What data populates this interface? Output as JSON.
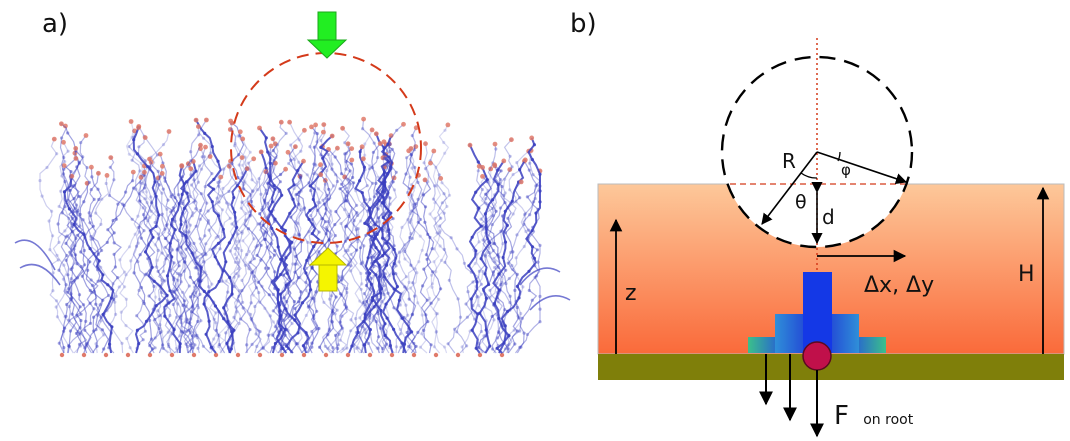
{
  "panel_a": {
    "label": "a)",
    "arrow_colors": {
      "top": "#22ee22",
      "bottom": "#f5f500"
    },
    "brush_color": "#3b3fc0",
    "end_bead_color": "#e07a6a",
    "dashed_circle_color": "#d43a1a"
  },
  "panel_b": {
    "label": "b)",
    "symbols": {
      "R": "R",
      "phi": "φ",
      "theta": "θ",
      "d": "d",
      "z": "z",
      "H": "H",
      "delta": "Δx, Δy",
      "force_main": "F",
      "force_sub": "on root"
    },
    "colors": {
      "layer_top": "#fdc89a",
      "layer_bottom": "#fa6a3a",
      "substrate": "#7f7f0a",
      "histogram_center": "#1438e6",
      "histogram_side": "#3a6ad0",
      "histogram_edge": "#2fbf8f",
      "root_bead": "#c0104a"
    }
  }
}
